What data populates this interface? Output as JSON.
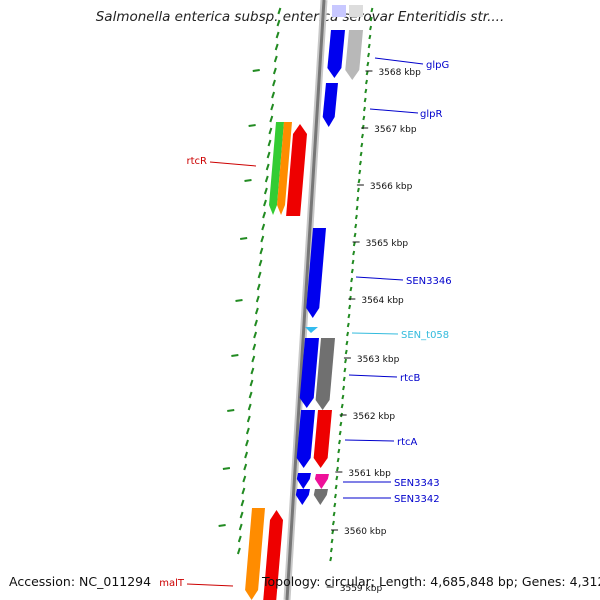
{
  "title": "Salmonella enterica subsp. enterica serovar Enteritidis str....",
  "scale_labels": [
    "3568 kbp",
    "3567 kbp",
    "3566 kbp",
    "3565 kbp",
    "3564 kbp",
    "3563 kbp",
    "3562 kbp",
    "3561 kbp",
    "3560 kbp",
    "3559 kbp"
  ],
  "genes": [
    {
      "name": "glpG",
      "color": "#0000cc"
    },
    {
      "name": "glpR",
      "color": "#0000cc"
    },
    {
      "name": "rtcR",
      "color": "#cc0000"
    },
    {
      "name": "SEN3346",
      "color": "#0000cc"
    },
    {
      "name": "SEN_t058",
      "color": "#33bbdd"
    },
    {
      "name": "rtcB",
      "color": "#0000cc"
    },
    {
      "name": "rtcA",
      "color": "#0000cc"
    },
    {
      "name": "SEN3343",
      "color": "#0000cc"
    },
    {
      "name": "SEN3342",
      "color": "#0000cc"
    },
    {
      "name": "malT",
      "color": "#cc0000"
    }
  ],
  "colors": {
    "gc_dash": "#228b22",
    "backbone_dark": "#777777",
    "backbone_light": "#c8c8c8",
    "cds_blue": "#0000ee",
    "cds_gray": "#b8b8b8",
    "orange": "#ff8c00",
    "green": "#33cc33",
    "red": "#ee0000",
    "magenta": "#ee1199",
    "dark_gray": "#707070",
    "trna_cyan": "#33bbee"
  },
  "footer": {
    "accession_label": "Accession:",
    "accession": "NC_011294",
    "topology_label": "Topology:",
    "topology": "circular",
    "length_label": "Length:",
    "length": "4,685,848 bp",
    "genes_label": "Genes:",
    "genes": "4,312"
  }
}
